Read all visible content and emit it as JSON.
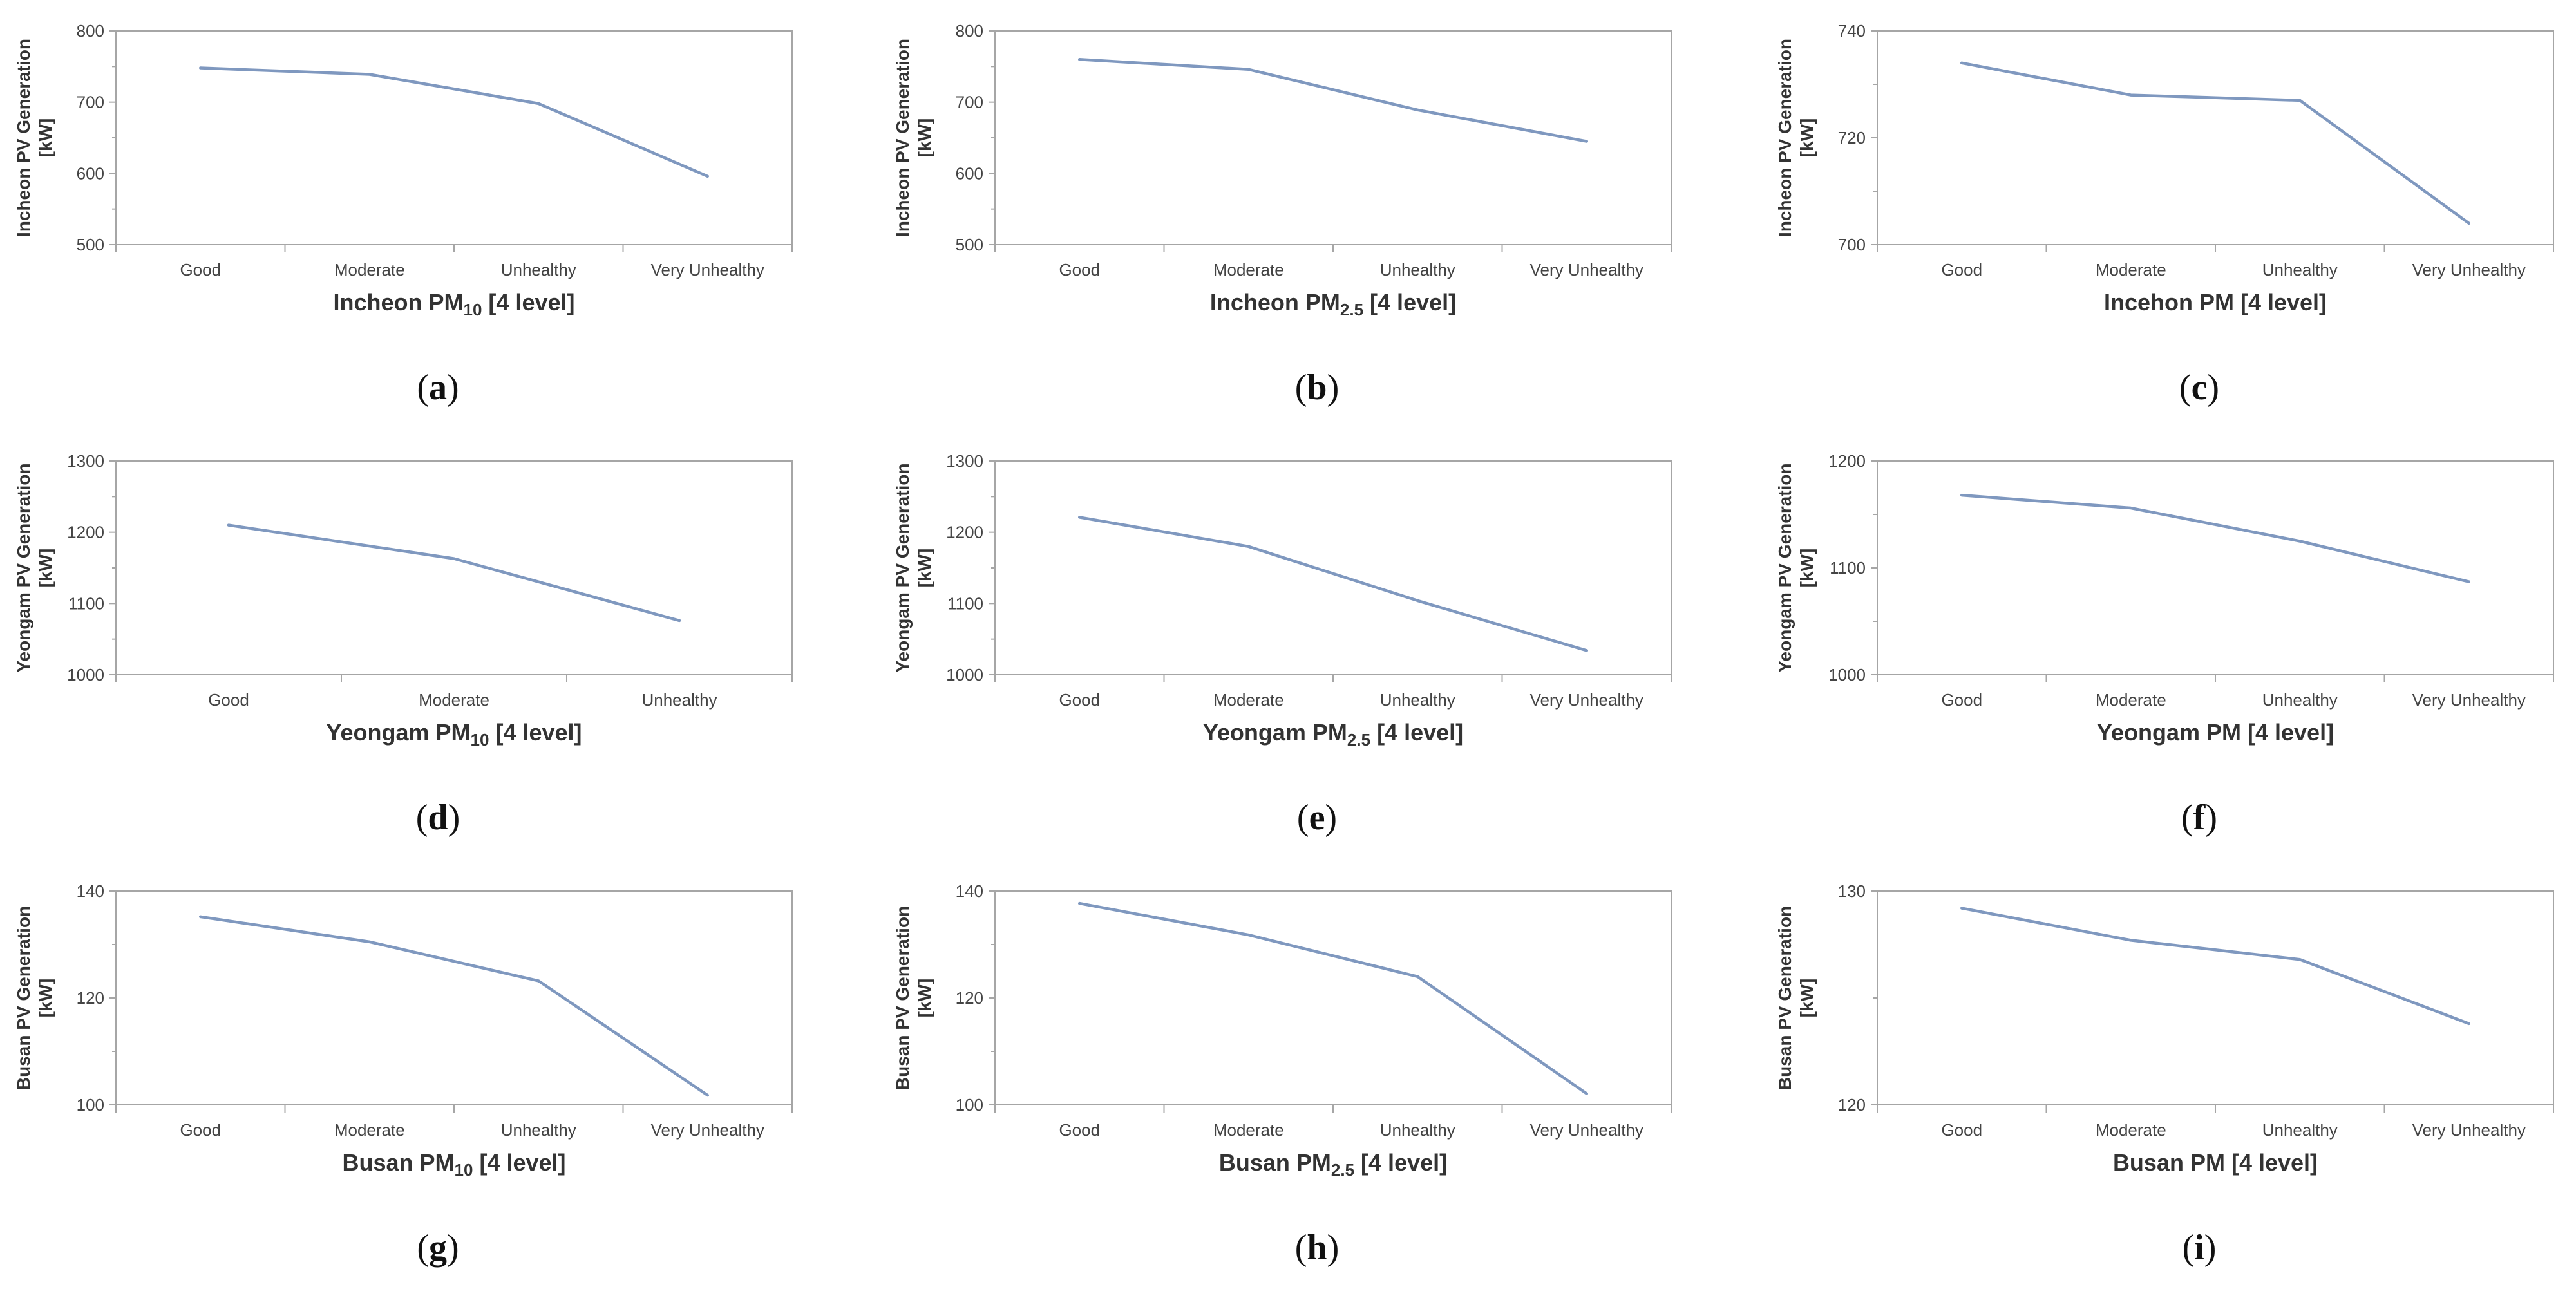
{
  "figure": {
    "line_color": "#7f98bf",
    "axis_color": "#a6a6a6"
  },
  "chart_data": [
    {
      "id": "a",
      "label": "a",
      "type": "line",
      "categories": [
        "Good",
        "Moderate",
        "Unhealthy",
        "Very Unhealthy"
      ],
      "values": [
        748,
        739,
        698,
        596
      ],
      "ylim": [
        500,
        800
      ],
      "yticks": [
        500,
        600,
        700,
        800
      ],
      "xlabel_main": "Incheon PM",
      "xlabel_sub": "10",
      "xlabel_suffix": " [4 level]",
      "ylabel_line1": "Incheon PV Generation",
      "ylabel_line2": "[kW]"
    },
    {
      "id": "b",
      "label": "b",
      "type": "line",
      "categories": [
        "Good",
        "Moderate",
        "Unhealthy",
        "Very Unhealthy"
      ],
      "values": [
        760,
        746,
        689,
        645
      ],
      "ylim": [
        500,
        800
      ],
      "yticks": [
        500,
        600,
        700,
        800
      ],
      "xlabel_main": "Incheon PM",
      "xlabel_sub": "2.5",
      "xlabel_suffix": " [4 level]",
      "ylabel_line1": "Incheon PV Generation",
      "ylabel_line2": "[kW]"
    },
    {
      "id": "c",
      "label": "c",
      "type": "line",
      "categories": [
        "Good",
        "Moderate",
        "Unhealthy",
        "Very Unhealthy"
      ],
      "values": [
        734,
        728,
        727,
        704
      ],
      "ylim": [
        700,
        740
      ],
      "yticks": [
        700,
        720,
        740
      ],
      "xlabel_main": "Incehon PM",
      "xlabel_sub": "",
      "xlabel_suffix": " [4 level]",
      "ylabel_line1": "Incheon PV Generation",
      "ylabel_line2": "[kW]"
    },
    {
      "id": "d",
      "label": "d",
      "type": "line",
      "categories": [
        "Good",
        "Moderate",
        "Unhealthy"
      ],
      "values": [
        1210,
        1163,
        1076
      ],
      "ylim": [
        1000,
        1300
      ],
      "yticks": [
        1000,
        1100,
        1200,
        1300
      ],
      "xlabel_main": "Yeongam PM",
      "xlabel_sub": "10",
      "xlabel_suffix": " [4 level]",
      "ylabel_line1": "Yeongam PV Generation",
      "ylabel_line2": "[kW]"
    },
    {
      "id": "e",
      "label": "e",
      "type": "line",
      "categories": [
        "Good",
        "Moderate",
        "Unhealthy",
        "Very Unhealthy"
      ],
      "values": [
        1221,
        1180,
        1104,
        1034
      ],
      "ylim": [
        1000,
        1300
      ],
      "yticks": [
        1000,
        1100,
        1200,
        1300
      ],
      "xlabel_main": "Yeongam PM",
      "xlabel_sub": "2.5",
      "xlabel_suffix": " [4 level]",
      "ylabel_line1": "Yeongam PV Generation",
      "ylabel_line2": "[kW]"
    },
    {
      "id": "f",
      "label": "f",
      "type": "line",
      "categories": [
        "Good",
        "Moderate",
        "Unhealthy",
        "Very Unhealthy"
      ],
      "values": [
        1168,
        1156,
        1125,
        1087
      ],
      "ylim": [
        1000,
        1200
      ],
      "yticks": [
        1000,
        1100,
        1200
      ],
      "xlabel_main": "Yeongam PM",
      "xlabel_sub": "",
      "xlabel_suffix": " [4 level]",
      "ylabel_line1": "Yeongam PV Generation",
      "ylabel_line2": "[kW]"
    },
    {
      "id": "g",
      "label": "g",
      "type": "line",
      "categories": [
        "Good",
        "Moderate",
        "Unhealthy",
        "Very Unhealthy"
      ],
      "values": [
        135.2,
        130.5,
        123.2,
        101.8
      ],
      "ylim": [
        100,
        140
      ],
      "yticks": [
        100,
        120,
        140
      ],
      "xlabel_main": "Busan PM",
      "xlabel_sub": "10",
      "xlabel_suffix": " [4 level]",
      "ylabel_line1": "Busan PV Generation",
      "ylabel_line2": "[kW]"
    },
    {
      "id": "h",
      "label": "h",
      "type": "line",
      "categories": [
        "Good",
        "Moderate",
        "Unhealthy",
        "Very Unhealthy"
      ],
      "values": [
        137.7,
        131.8,
        124.0,
        102.1
      ],
      "ylim": [
        100,
        140
      ],
      "yticks": [
        100,
        120,
        140
      ],
      "xlabel_main": "Busan PM",
      "xlabel_sub": "2.5",
      "xlabel_suffix": " [4 level]",
      "ylabel_line1": "Busan PV Generation",
      "ylabel_line2": "[kW]"
    },
    {
      "id": "i",
      "label": "i",
      "type": "line",
      "categories": [
        "Good",
        "Moderate",
        "Unhealthy",
        "Very Unhealthy"
      ],
      "values": [
        129.2,
        127.7,
        126.8,
        123.8
      ],
      "ylim": [
        120,
        130
      ],
      "yticks": [
        120,
        130
      ],
      "xlabel_main": "Busan PM",
      "xlabel_sub": "",
      "xlabel_suffix": " [4 level]",
      "ylabel_line1": "Busan PV Generation",
      "ylabel_line2": "[kW]"
    }
  ]
}
